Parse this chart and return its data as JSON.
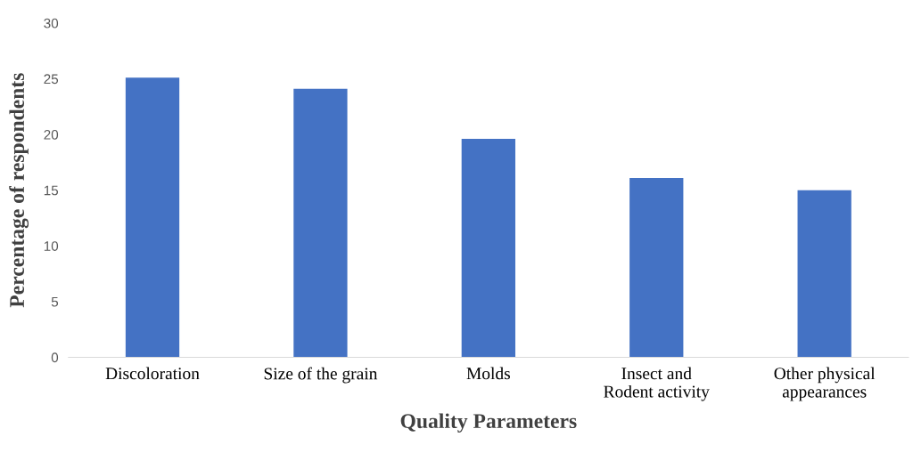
{
  "chart_data": {
    "type": "bar",
    "xlabel": "Quality Parameters",
    "ylabel": "Percentage of respondents",
    "categories": [
      "Discoloration",
      "Size of the grain",
      "Molds",
      "Insect and\nRodent activity",
      "Other physical\nappearances"
    ],
    "values": [
      25.1,
      24.1,
      19.6,
      16.1,
      15.0
    ],
    "color": "#4472c4",
    "ylim": [
      0,
      30
    ],
    "yticks": [
      0,
      5,
      10,
      15,
      20,
      25,
      30
    ],
    "grid": false,
    "legend": false
  }
}
